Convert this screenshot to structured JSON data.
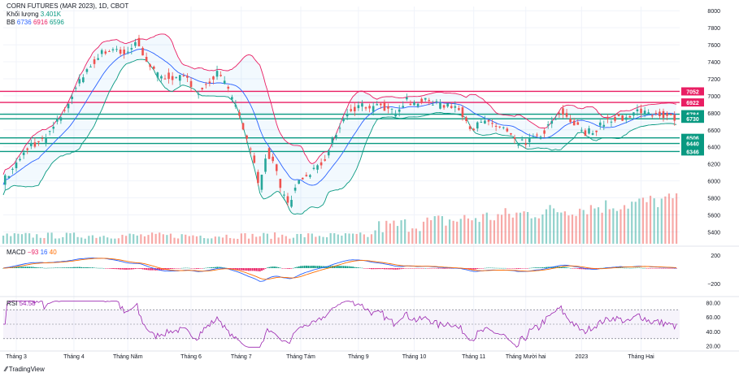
{
  "chart_data": [
    {
      "type": "candlestick",
      "title": "CORN FUTURES (MAR 2023), 1D, CBOT",
      "volume_label": "Khối lượng",
      "volume_value": "3.401K",
      "bb_label": "BB",
      "bb_values": [
        "6736",
        "6916",
        "6596"
      ],
      "y_ticks": [
        5400,
        5600,
        5800,
        6000,
        6200,
        6400,
        6600,
        6800,
        7000,
        7200,
        7400,
        7600,
        7800,
        8000
      ],
      "y_tick_labels": [
        "5400",
        "5600",
        "5800",
        "6000",
        "6200",
        "6400",
        "6600",
        "6800",
        "7000",
        "7200",
        "7400",
        "7600",
        "7800",
        "8000"
      ],
      "ylim": [
        5280,
        8050
      ],
      "x_labels": [
        "Tháng 3",
        "Tháng 4",
        "Tháng Năm",
        "Tháng 6",
        "Tháng 7",
        "Tháng Tám",
        "Tháng 9",
        "Tháng 10",
        "Tháng 11",
        "Tháng Mười hai",
        "2023",
        "Tháng Hai"
      ],
      "x_label_days": [
        7,
        38,
        67,
        101,
        128,
        160,
        191,
        221,
        253,
        281,
        311,
        343
      ],
      "n_days": 363,
      "horizontal_lines": [
        {
          "value": 7052,
          "color": "#e91e63",
          "label": "7052"
        },
        {
          "value": 6922,
          "color": "#e91e63",
          "label": "6922"
        },
        {
          "value": 6784,
          "color": "#089981",
          "label": "6784"
        },
        {
          "value": 6730,
          "color": "#089981",
          "label": "6730"
        },
        {
          "value": 6506,
          "color": "#089981",
          "label": "6506"
        },
        {
          "value": 6440,
          "color": "#089981",
          "label": "6440"
        },
        {
          "value": 6346,
          "color": "#089981",
          "label": "6346"
        }
      ],
      "price_anchors": [
        [
          0,
          6000
        ],
        [
          8,
          6220
        ],
        [
          14,
          6420
        ],
        [
          22,
          6480
        ],
        [
          30,
          6720
        ],
        [
          38,
          7050
        ],
        [
          46,
          7350
        ],
        [
          54,
          7520
        ],
        [
          60,
          7560
        ],
        [
          66,
          7480
        ],
        [
          72,
          7640
        ],
        [
          76,
          7450
        ],
        [
          82,
          7250
        ],
        [
          90,
          7220
        ],
        [
          98,
          7200
        ],
        [
          104,
          7050
        ],
        [
          110,
          7150
        ],
        [
          116,
          7280
        ],
        [
          122,
          7000
        ],
        [
          128,
          6700
        ],
        [
          134,
          6280
        ],
        [
          138,
          5930
        ],
        [
          142,
          6350
        ],
        [
          146,
          6150
        ],
        [
          150,
          5850
        ],
        [
          154,
          5720
        ],
        [
          158,
          5980
        ],
        [
          162,
          6050
        ],
        [
          168,
          6120
        ],
        [
          174,
          6300
        ],
        [
          180,
          6620
        ],
        [
          186,
          6820
        ],
        [
          192,
          6900
        ],
        [
          198,
          6850
        ],
        [
          204,
          6880
        ],
        [
          210,
          6800
        ],
        [
          216,
          6950
        ],
        [
          222,
          6900
        ],
        [
          228,
          6960
        ],
        [
          234,
          6880
        ],
        [
          240,
          6910
        ],
        [
          246,
          6820
        ],
        [
          252,
          6620
        ],
        [
          258,
          6680
        ],
        [
          264,
          6660
        ],
        [
          270,
          6600
        ],
        [
          276,
          6420
        ],
        [
          282,
          6470
        ],
        [
          288,
          6520
        ],
        [
          294,
          6660
        ],
        [
          300,
          6820
        ],
        [
          306,
          6700
        ],
        [
          312,
          6560
        ],
        [
          318,
          6600
        ],
        [
          324,
          6700
        ],
        [
          330,
          6760
        ],
        [
          336,
          6720
        ],
        [
          342,
          6840
        ],
        [
          348,
          6790
        ],
        [
          356,
          6780
        ],
        [
          362,
          6736
        ]
      ]
    },
    {
      "type": "bar",
      "name": "volume",
      "note_levels": "relative"
    },
    {
      "type": "line",
      "label": "MACD",
      "values_text": [
        "−93",
        "16",
        "40"
      ],
      "y_tick_labels": [
        "200",
        "−200"
      ]
    },
    {
      "type": "line",
      "label": "RSI",
      "value_text": "54.58",
      "y_tick_labels": [
        "80.00",
        "60.00",
        "40.00",
        "20.00"
      ],
      "upper": 70,
      "lower": 30
    }
  ],
  "branding": "TradingView",
  "colors": {
    "up": "#26a69a",
    "down": "#ef5350",
    "bb_upper": "#e91e63",
    "bb_basis": "#2962ff",
    "bb_lower": "#089981",
    "rsi": "#9c27b0",
    "macd": "#2962ff",
    "signal": "#ff6d00"
  }
}
